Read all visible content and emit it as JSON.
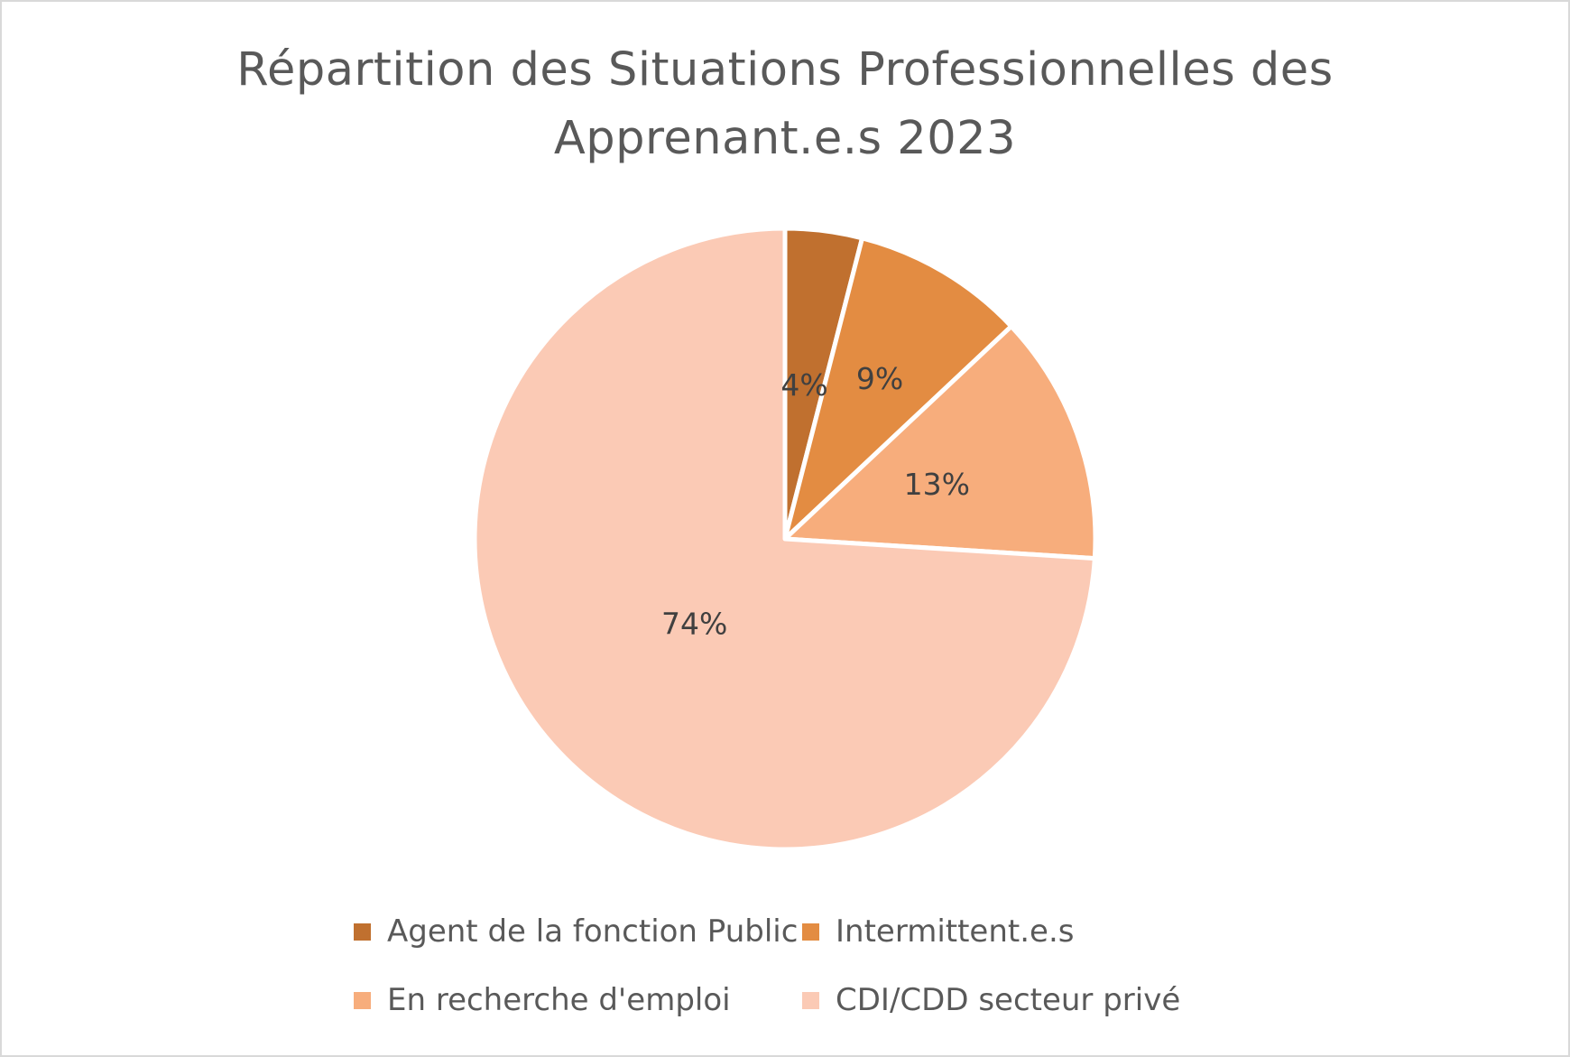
{
  "title_lines": [
    "Répartition des Situations Professionnelles des",
    "Apprenant.e.s 2023"
  ],
  "chart_data": {
    "type": "pie",
    "title": "Répartition des Situations Professionnelles des Apprenant.e.s 2023",
    "start_angle_deg": 0,
    "direction": "clockwise",
    "legend_position": "bottom",
    "slices": [
      {
        "label": "Agent de la fonction Public",
        "value": 4,
        "data_label": "4%",
        "color": "#C0702F"
      },
      {
        "label": "Intermittent.e.s",
        "value": 9,
        "data_label": "9%",
        "color": "#E38C42"
      },
      {
        "label": "En recherche d'emploi",
        "value": 13,
        "data_label": "13%",
        "color": "#F7AD7C"
      },
      {
        "label": "CDI/CDD secteur privé",
        "value": 74,
        "data_label": "74%",
        "color": "#FBCAB5"
      }
    ]
  },
  "legend": [
    {
      "label": "Agent de la fonction Public",
      "color": "#C0702F"
    },
    {
      "label": "Intermittent.e.s",
      "color": "#E38C42"
    },
    {
      "label": "En recherche d'emploi",
      "color": "#F7AD7C"
    },
    {
      "label": "CDI/CDD secteur privé",
      "color": "#FBCAB5"
    }
  ]
}
